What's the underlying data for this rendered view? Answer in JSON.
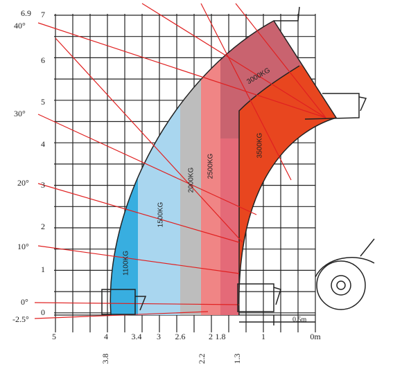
{
  "y_axis": {
    "top_label": "6.9",
    "labels": [
      "7",
      "6",
      "5",
      "4",
      "3",
      "2",
      "1",
      "0"
    ]
  },
  "angles": [
    "40°",
    "30°",
    "20°",
    "10°",
    "0°",
    "-2.5°"
  ],
  "x_axis": {
    "labels": [
      "5",
      "4",
      "3.4",
      "3",
      "2.6",
      "2",
      "1.8",
      "1",
      "0m"
    ],
    "sub_labels": [
      "3.8",
      "2.2",
      "1.3"
    ]
  },
  "zones": [
    "1100KG",
    "1500KG",
    "2000KG",
    "2500KG",
    "3000KG",
    "3500KG"
  ],
  "dimension": "0.5m"
}
